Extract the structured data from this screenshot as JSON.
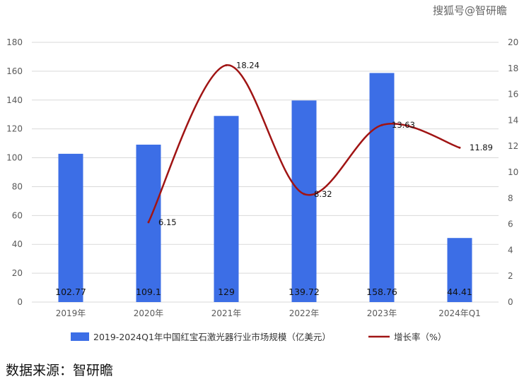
{
  "watermark": "搜狐号@智研瞻",
  "source_note": "数据来源：智研瞻",
  "colors": {
    "bar": "#3c6ee6",
    "line": "#a01414",
    "grid": "#d9d9d9",
    "axis_text": "#595959"
  },
  "chart_data": {
    "type": "bar",
    "categories": [
      "2019年",
      "2020年",
      "2021年",
      "2022年",
      "2023年",
      "2024年Q1"
    ],
    "series": [
      {
        "name": "2019-2024Q1年中国红宝石激光器行业市场规模（亿美元）",
        "type": "bar",
        "axis": "left",
        "values": [
          102.77,
          109.1,
          129,
          139.72,
          158.76,
          44.41
        ],
        "labels": [
          "102.77",
          "109.1",
          "129",
          "139.72",
          "158.76",
          "44.41"
        ]
      },
      {
        "name": "增长率（%）",
        "type": "line",
        "axis": "right",
        "values": [
          null,
          6.15,
          18.24,
          8.32,
          13.63,
          11.89
        ],
        "labels": [
          "",
          "6.15",
          "18.24",
          "8.32",
          "13.63",
          "11.89"
        ]
      }
    ],
    "y_left": {
      "min": 0,
      "max": 180,
      "step": 20,
      "ticks": [
        "0",
        "20",
        "40",
        "60",
        "80",
        "100",
        "120",
        "140",
        "160",
        "180"
      ]
    },
    "y_right": {
      "min": 0,
      "max": 20,
      "step": 2,
      "ticks": [
        "0",
        "2",
        "4",
        "6",
        "8",
        "10",
        "12",
        "14",
        "16",
        "18",
        "20"
      ]
    },
    "grid": true,
    "legend_position": "bottom"
  }
}
